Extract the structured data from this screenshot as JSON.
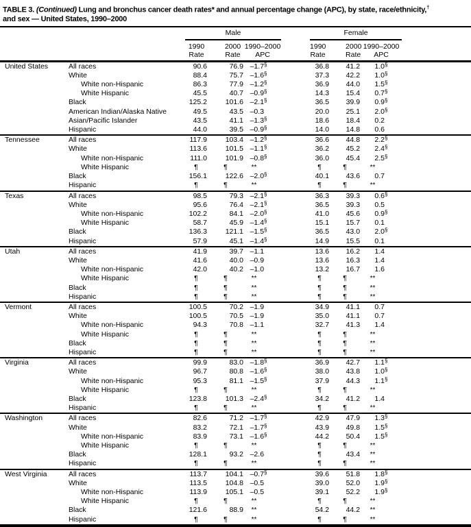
{
  "title": {
    "label": "TABLE 3.",
    "continued": "(Continued)",
    "rest": "Lung and bronchus cancer death rates* and annual percentage change (APC), by state, race/ethnicity,",
    "dagger": "†",
    "line2": "and sex — United States, 1990–2000"
  },
  "header": {
    "male": "Male",
    "female": "Female",
    "y1990": "1990",
    "y2000": "2000",
    "range": "1990–2000",
    "rate": "Rate",
    "apc": "APC"
  },
  "placeholders": {
    "rate": "¶",
    "apc": "**"
  },
  "sections": [
    {
      "state": "United States",
      "rows": [
        {
          "label": "All races",
          "indent": 0,
          "cells": [
            "90.6",
            "76.9",
            "–1.7§",
            "36.8",
            "41.2",
            "1.0§"
          ]
        },
        {
          "label": "White",
          "indent": 0,
          "cells": [
            "88.4",
            "75.7",
            "–1.6§",
            "37.3",
            "42.2",
            "1.0§"
          ]
        },
        {
          "label": "White non-Hispanic",
          "indent": 1,
          "cells": [
            "86.3",
            "77.9",
            "–1.2§",
            "36.9",
            "44.0",
            "1.5§"
          ]
        },
        {
          "label": "White Hispanic",
          "indent": 1,
          "cells": [
            "45.5",
            "40.7",
            "–0.9§",
            "14.3",
            "15.4",
            "0.7§"
          ]
        },
        {
          "label": "Black",
          "indent": 0,
          "cells": [
            "125.2",
            "101.6",
            "–2.1§",
            "36.5",
            "39.9",
            "0.9§"
          ]
        },
        {
          "label": "American Indian/Alaska Native",
          "indent": 0,
          "cells": [
            "49.5",
            "43.5",
            "–0.3",
            "20.0",
            "25.1",
            "2.0§"
          ]
        },
        {
          "label": "Asian/Pacific Islander",
          "indent": 0,
          "cells": [
            "43.5",
            "41.1",
            "–1.3§",
            "18.6",
            "18.4",
            "0.2"
          ]
        },
        {
          "label": "Hispanic",
          "indent": 0,
          "cells": [
            "44.0",
            "39.5",
            "–0.9§",
            "14.0",
            "14.8",
            "0.6"
          ]
        }
      ]
    },
    {
      "state": "Tennessee",
      "rows": [
        {
          "label": "All races",
          "indent": 0,
          "cells": [
            "117.9",
            "103.4",
            "–1.2§",
            "36.6",
            "44.8",
            "2.2§"
          ]
        },
        {
          "label": "White",
          "indent": 0,
          "cells": [
            "113.6",
            "101.5",
            "–1.1§",
            "36.2",
            "45.2",
            "2.4§"
          ]
        },
        {
          "label": "White non-Hispanic",
          "indent": 1,
          "cells": [
            "111.0",
            "101.9",
            "–0.8§",
            "36.0",
            "45.4",
            "2.5§"
          ]
        },
        {
          "label": "White Hispanic",
          "indent": 1,
          "cells": [
            "¶",
            "¶",
            "**",
            "¶",
            "¶",
            "**"
          ]
        },
        {
          "label": "Black",
          "indent": 0,
          "cells": [
            "156.1",
            "122.6",
            "–2.0§",
            "40.1",
            "43.6",
            "0.7"
          ]
        },
        {
          "label": "Hispanic",
          "indent": 0,
          "cells": [
            "¶",
            "¶",
            "**",
            "¶",
            "¶",
            "**"
          ]
        }
      ]
    },
    {
      "state": "Texas",
      "rows": [
        {
          "label": "All races",
          "indent": 0,
          "cells": [
            "98.5",
            "79.3",
            "–2.1§",
            "36.3",
            "39.3",
            "0.6§"
          ]
        },
        {
          "label": "White",
          "indent": 0,
          "cells": [
            "95.6",
            "76.4",
            "–2.1§",
            "36.5",
            "39.3",
            "0.5"
          ]
        },
        {
          "label": "White non-Hispanic",
          "indent": 1,
          "cells": [
            "102.2",
            "84.1",
            "–2.0§",
            "41.0",
            "45.6",
            "0.9§"
          ]
        },
        {
          "label": "White Hispanic",
          "indent": 1,
          "cells": [
            "58.7",
            "45.9",
            "–1.4§",
            "15.1",
            "15.7",
            "0.1"
          ]
        },
        {
          "label": "Black",
          "indent": 0,
          "cells": [
            "136.3",
            "121.1",
            "–1.5§",
            "36.5",
            "43.0",
            "2.0§"
          ]
        },
        {
          "label": "Hispanic",
          "indent": 0,
          "cells": [
            "57.9",
            "45.1",
            "–1.4§",
            "14.9",
            "15.5",
            "0.1"
          ]
        }
      ]
    },
    {
      "state": "Utah",
      "rows": [
        {
          "label": "All races",
          "indent": 0,
          "cells": [
            "41.9",
            "39.7",
            "–1.1",
            "13.6",
            "16.2",
            "1.4"
          ]
        },
        {
          "label": "White",
          "indent": 0,
          "cells": [
            "41.6",
            "40.0",
            "–0.9",
            "13.6",
            "16.3",
            "1.4"
          ]
        },
        {
          "label": "White non-Hispanic",
          "indent": 1,
          "cells": [
            "42.0",
            "40.2",
            "–1.0",
            "13.2",
            "16.7",
            "1.6"
          ]
        },
        {
          "label": "White Hispanic",
          "indent": 1,
          "cells": [
            "¶",
            "¶",
            "**",
            "¶",
            "¶",
            "**"
          ]
        },
        {
          "label": "Black",
          "indent": 0,
          "cells": [
            "¶",
            "¶",
            "**",
            "¶",
            "¶",
            "**"
          ]
        },
        {
          "label": "Hispanic",
          "indent": 0,
          "cells": [
            "¶",
            "¶",
            "**",
            "¶",
            "¶",
            "**"
          ]
        }
      ]
    },
    {
      "state": "Vermont",
      "rows": [
        {
          "label": "All races",
          "indent": 0,
          "cells": [
            "100.5",
            "70.2",
            "–1.9",
            "34.9",
            "41.1",
            "0.7"
          ]
        },
        {
          "label": "White",
          "indent": 0,
          "cells": [
            "100.5",
            "70.5",
            "–1.9",
            "35.0",
            "41.1",
            "0.7"
          ]
        },
        {
          "label": "White non-Hispanic",
          "indent": 1,
          "cells": [
            "94.3",
            "70.8",
            "–1.1",
            "32.7",
            "41.3",
            "1.4"
          ]
        },
        {
          "label": "White Hispanic",
          "indent": 1,
          "cells": [
            "¶",
            "¶",
            "**",
            "¶",
            "¶",
            "**"
          ]
        },
        {
          "label": "Black",
          "indent": 0,
          "cells": [
            "¶",
            "¶",
            "**",
            "¶",
            "¶",
            "**"
          ]
        },
        {
          "label": "Hispanic",
          "indent": 0,
          "cells": [
            "¶",
            "¶",
            "**",
            "¶",
            "¶",
            "**"
          ]
        }
      ]
    },
    {
      "state": "Virginia",
      "rows": [
        {
          "label": "All races",
          "indent": 0,
          "cells": [
            "99.9",
            "83.0",
            "–1.8§",
            "36.9",
            "42.7",
            "1.1§"
          ]
        },
        {
          "label": "White",
          "indent": 0,
          "cells": [
            "96.7",
            "80.8",
            "–1.6§",
            "38.0",
            "43.8",
            "1.0§"
          ]
        },
        {
          "label": "White non-Hispanic",
          "indent": 1,
          "cells": [
            "95.3",
            "81.1",
            "–1.5§",
            "37.9",
            "44.3",
            "1.1§"
          ]
        },
        {
          "label": "White Hispanic",
          "indent": 1,
          "cells": [
            "¶",
            "¶",
            "**",
            "¶",
            "¶",
            "**"
          ]
        },
        {
          "label": "Black",
          "indent": 0,
          "cells": [
            "123.8",
            "101.3",
            "–2.4§",
            "34.2",
            "41.2",
            "1.4"
          ]
        },
        {
          "label": "Hispanic",
          "indent": 0,
          "cells": [
            "¶",
            "¶",
            "**",
            "¶",
            "¶",
            "**"
          ]
        }
      ]
    },
    {
      "state": "Washington",
      "rows": [
        {
          "label": "All races",
          "indent": 0,
          "cells": [
            "82.6",
            "71.2",
            "–1.7§",
            "42.9",
            "47.9",
            "1.3§"
          ]
        },
        {
          "label": "White",
          "indent": 0,
          "cells": [
            "83.2",
            "72.1",
            "–1.7§",
            "43.9",
            "49.8",
            "1.5§"
          ]
        },
        {
          "label": "White non-Hispanic",
          "indent": 1,
          "cells": [
            "83.9",
            "73.1",
            "–1.6§",
            "44.2",
            "50.4",
            "1.5§"
          ]
        },
        {
          "label": "White Hispanic",
          "indent": 1,
          "cells": [
            "¶",
            "¶",
            "**",
            "¶",
            "¶",
            "**"
          ]
        },
        {
          "label": "Black",
          "indent": 0,
          "cells": [
            "128.1",
            "93.2",
            "–2.6",
            "¶",
            "43.4",
            "**"
          ]
        },
        {
          "label": "Hispanic",
          "indent": 0,
          "cells": [
            "¶",
            "¶",
            "**",
            "¶",
            "¶",
            "**"
          ]
        }
      ]
    },
    {
      "state": "West Virginia",
      "rows": [
        {
          "label": "All races",
          "indent": 0,
          "cells": [
            "113.7",
            "104.1",
            "–0.7§",
            "39.6",
            "51.8",
            "1.8§"
          ]
        },
        {
          "label": "White",
          "indent": 0,
          "cells": [
            "113.5",
            "104.8",
            "–0.5",
            "39.0",
            "52.0",
            "1.9§"
          ]
        },
        {
          "label": "White non-Hispanic",
          "indent": 1,
          "cells": [
            "113.9",
            "105.1",
            "–0.5",
            "39.1",
            "52.2",
            "1.9§"
          ]
        },
        {
          "label": "White Hispanic",
          "indent": 1,
          "cells": [
            "¶",
            "¶",
            "**",
            "¶",
            "¶",
            "**"
          ]
        },
        {
          "label": "Black",
          "indent": 0,
          "cells": [
            "121.6",
            "88.9",
            "**",
            "54.2",
            "44.2",
            "**"
          ]
        },
        {
          "label": "Hispanic",
          "indent": 0,
          "cells": [
            "¶",
            "¶",
            "**",
            "¶",
            "¶",
            "**"
          ]
        }
      ]
    }
  ]
}
